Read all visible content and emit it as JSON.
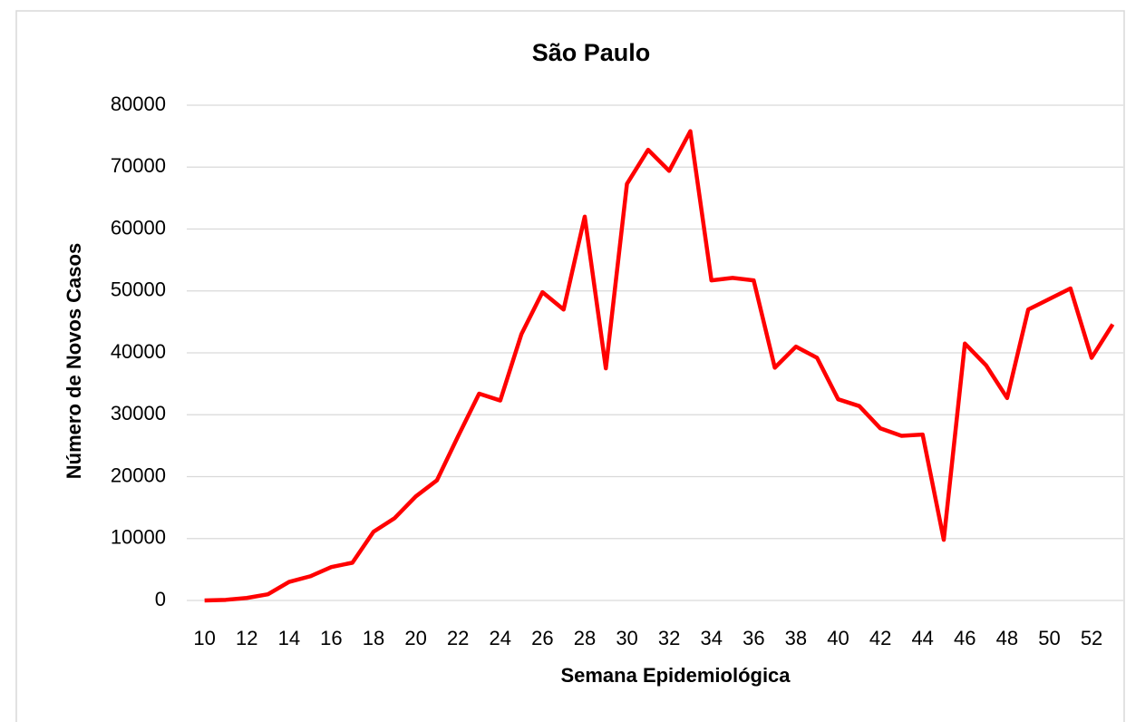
{
  "chart_data": {
    "type": "line",
    "title": "São Paulo",
    "x_label": "Semana Epidemiológica",
    "y_label": "Número de Novos Casos",
    "x": [
      10,
      11,
      12,
      13,
      14,
      15,
      16,
      17,
      18,
      19,
      20,
      21,
      22,
      23,
      24,
      25,
      26,
      27,
      28,
      29,
      30,
      31,
      32,
      33,
      34,
      35,
      36,
      37,
      38,
      39,
      40,
      41,
      42,
      43,
      44,
      45,
      46,
      47,
      48,
      49,
      50,
      51,
      52,
      53
    ],
    "series": [
      {
        "name": "São Paulo",
        "color": "#ff0000",
        "values": [
          0,
          100,
          400,
          1000,
          3000,
          3900,
          5400,
          6100,
          11100,
          13300,
          16800,
          19400,
          26500,
          33400,
          32300,
          43000,
          49800,
          47000,
          62000,
          37500,
          67300,
          72800,
          69400,
          75800,
          51700,
          52100,
          51700,
          37600,
          41000,
          39200,
          32500,
          31400,
          27800,
          26600,
          26800,
          9800,
          41500,
          38000,
          32700,
          47000,
          48700,
          50400,
          39200,
          44600
        ]
      }
    ],
    "xlim": [
      9.5,
      53.5
    ],
    "xticks": [
      10,
      12,
      14,
      16,
      18,
      20,
      22,
      24,
      26,
      28,
      30,
      32,
      34,
      36,
      38,
      40,
      42,
      44,
      46,
      48,
      50,
      52
    ],
    "ylim": [
      0,
      80000
    ],
    "yticks": [
      0,
      10000,
      20000,
      30000,
      40000,
      50000,
      60000,
      70000,
      80000
    ],
    "grid": true
  }
}
